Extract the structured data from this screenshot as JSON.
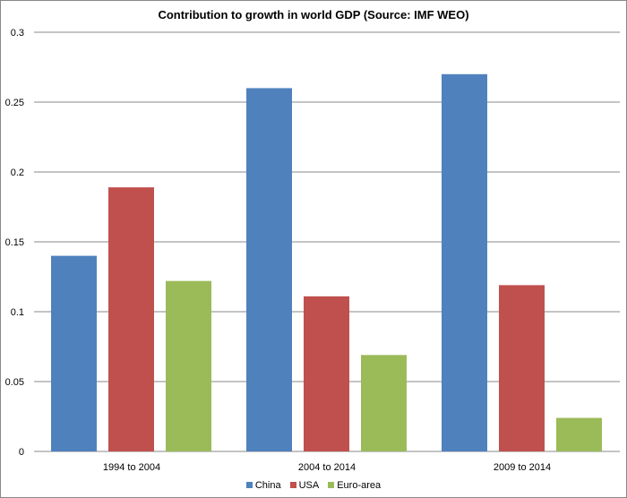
{
  "chart_data": {
    "type": "bar",
    "title": "Contribution to growth in world GDP  (Source: IMF WEO)",
    "categories": [
      "1994 to 2004",
      "2004 to 2014",
      "2009 to 2014"
    ],
    "series": [
      {
        "name": "China",
        "color": "#4F81BD",
        "values": [
          0.14,
          0.26,
          0.27
        ]
      },
      {
        "name": "USA",
        "color": "#C0504D",
        "values": [
          0.189,
          0.111,
          0.119
        ]
      },
      {
        "name": "Euro-area",
        "color": "#9BBB59",
        "values": [
          0.122,
          0.069,
          0.024
        ]
      }
    ],
    "ylim": [
      0,
      0.3
    ],
    "yticks": [
      "0",
      "0.05",
      "0.1",
      "0.15",
      "0.2",
      "0.25",
      "0.3"
    ],
    "grid": true,
    "legend": "bottom"
  }
}
